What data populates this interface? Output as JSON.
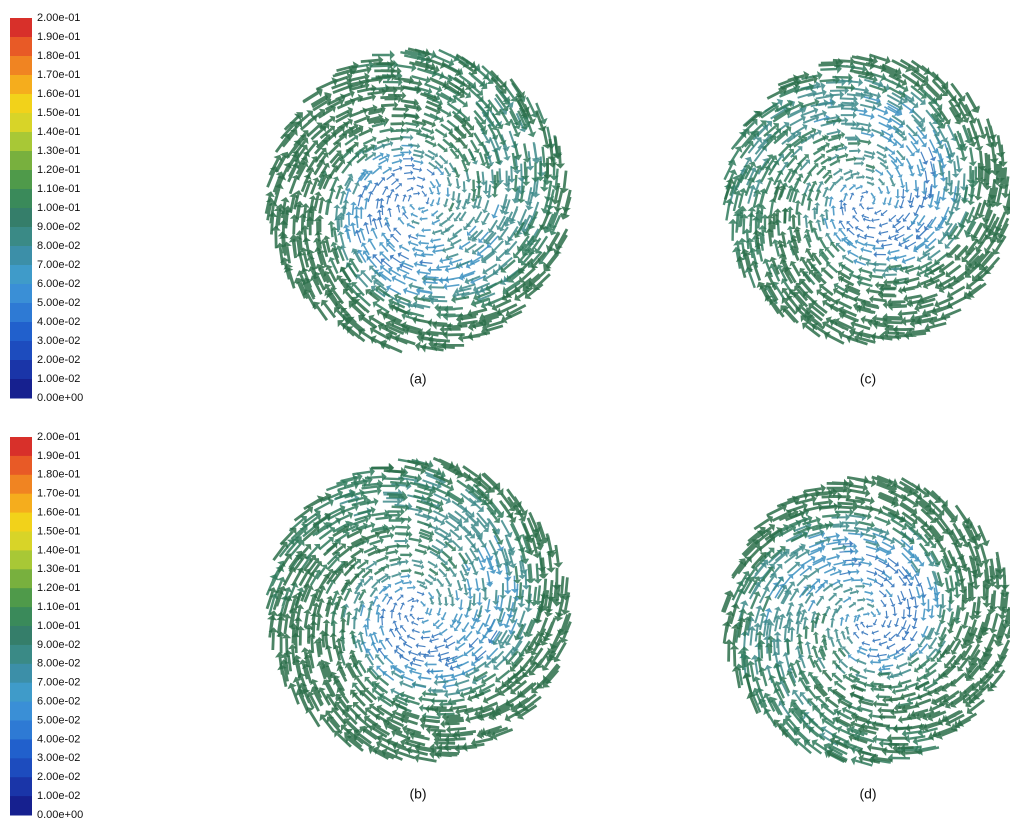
{
  "colorbars": [
    {
      "labels": [
        "2.00e-01",
        "1.90e-01",
        "1.80e-01",
        "1.70e-01",
        "1.60e-01",
        "1.50e-01",
        "1.40e-01",
        "1.30e-01",
        "1.20e-01",
        "1.10e-01",
        "1.00e-01",
        "9.00e-02",
        "8.00e-02",
        "7.00e-02",
        "6.00e-02",
        "5.00e-02",
        "4.00e-02",
        "3.00e-02",
        "2.00e-02",
        "1.00e-02",
        "0.00e+00"
      ]
    },
    {
      "labels": [
        "2.00e-01",
        "1.90e-01",
        "1.80e-01",
        "1.70e-01",
        "1.60e-01",
        "1.50e-01",
        "1.40e-01",
        "1.30e-01",
        "1.20e-01",
        "1.10e-01",
        "1.00e-01",
        "9.00e-02",
        "8.00e-02",
        "7.00e-02",
        "6.00e-02",
        "5.00e-02",
        "4.00e-02",
        "3.00e-02",
        "2.00e-02",
        "1.00e-02",
        "0.00e+00"
      ]
    }
  ],
  "panels": [
    {
      "label": "(a)"
    },
    {
      "label": "(b)"
    },
    {
      "label": "(c)"
    },
    {
      "label": "(d)"
    }
  ]
}
